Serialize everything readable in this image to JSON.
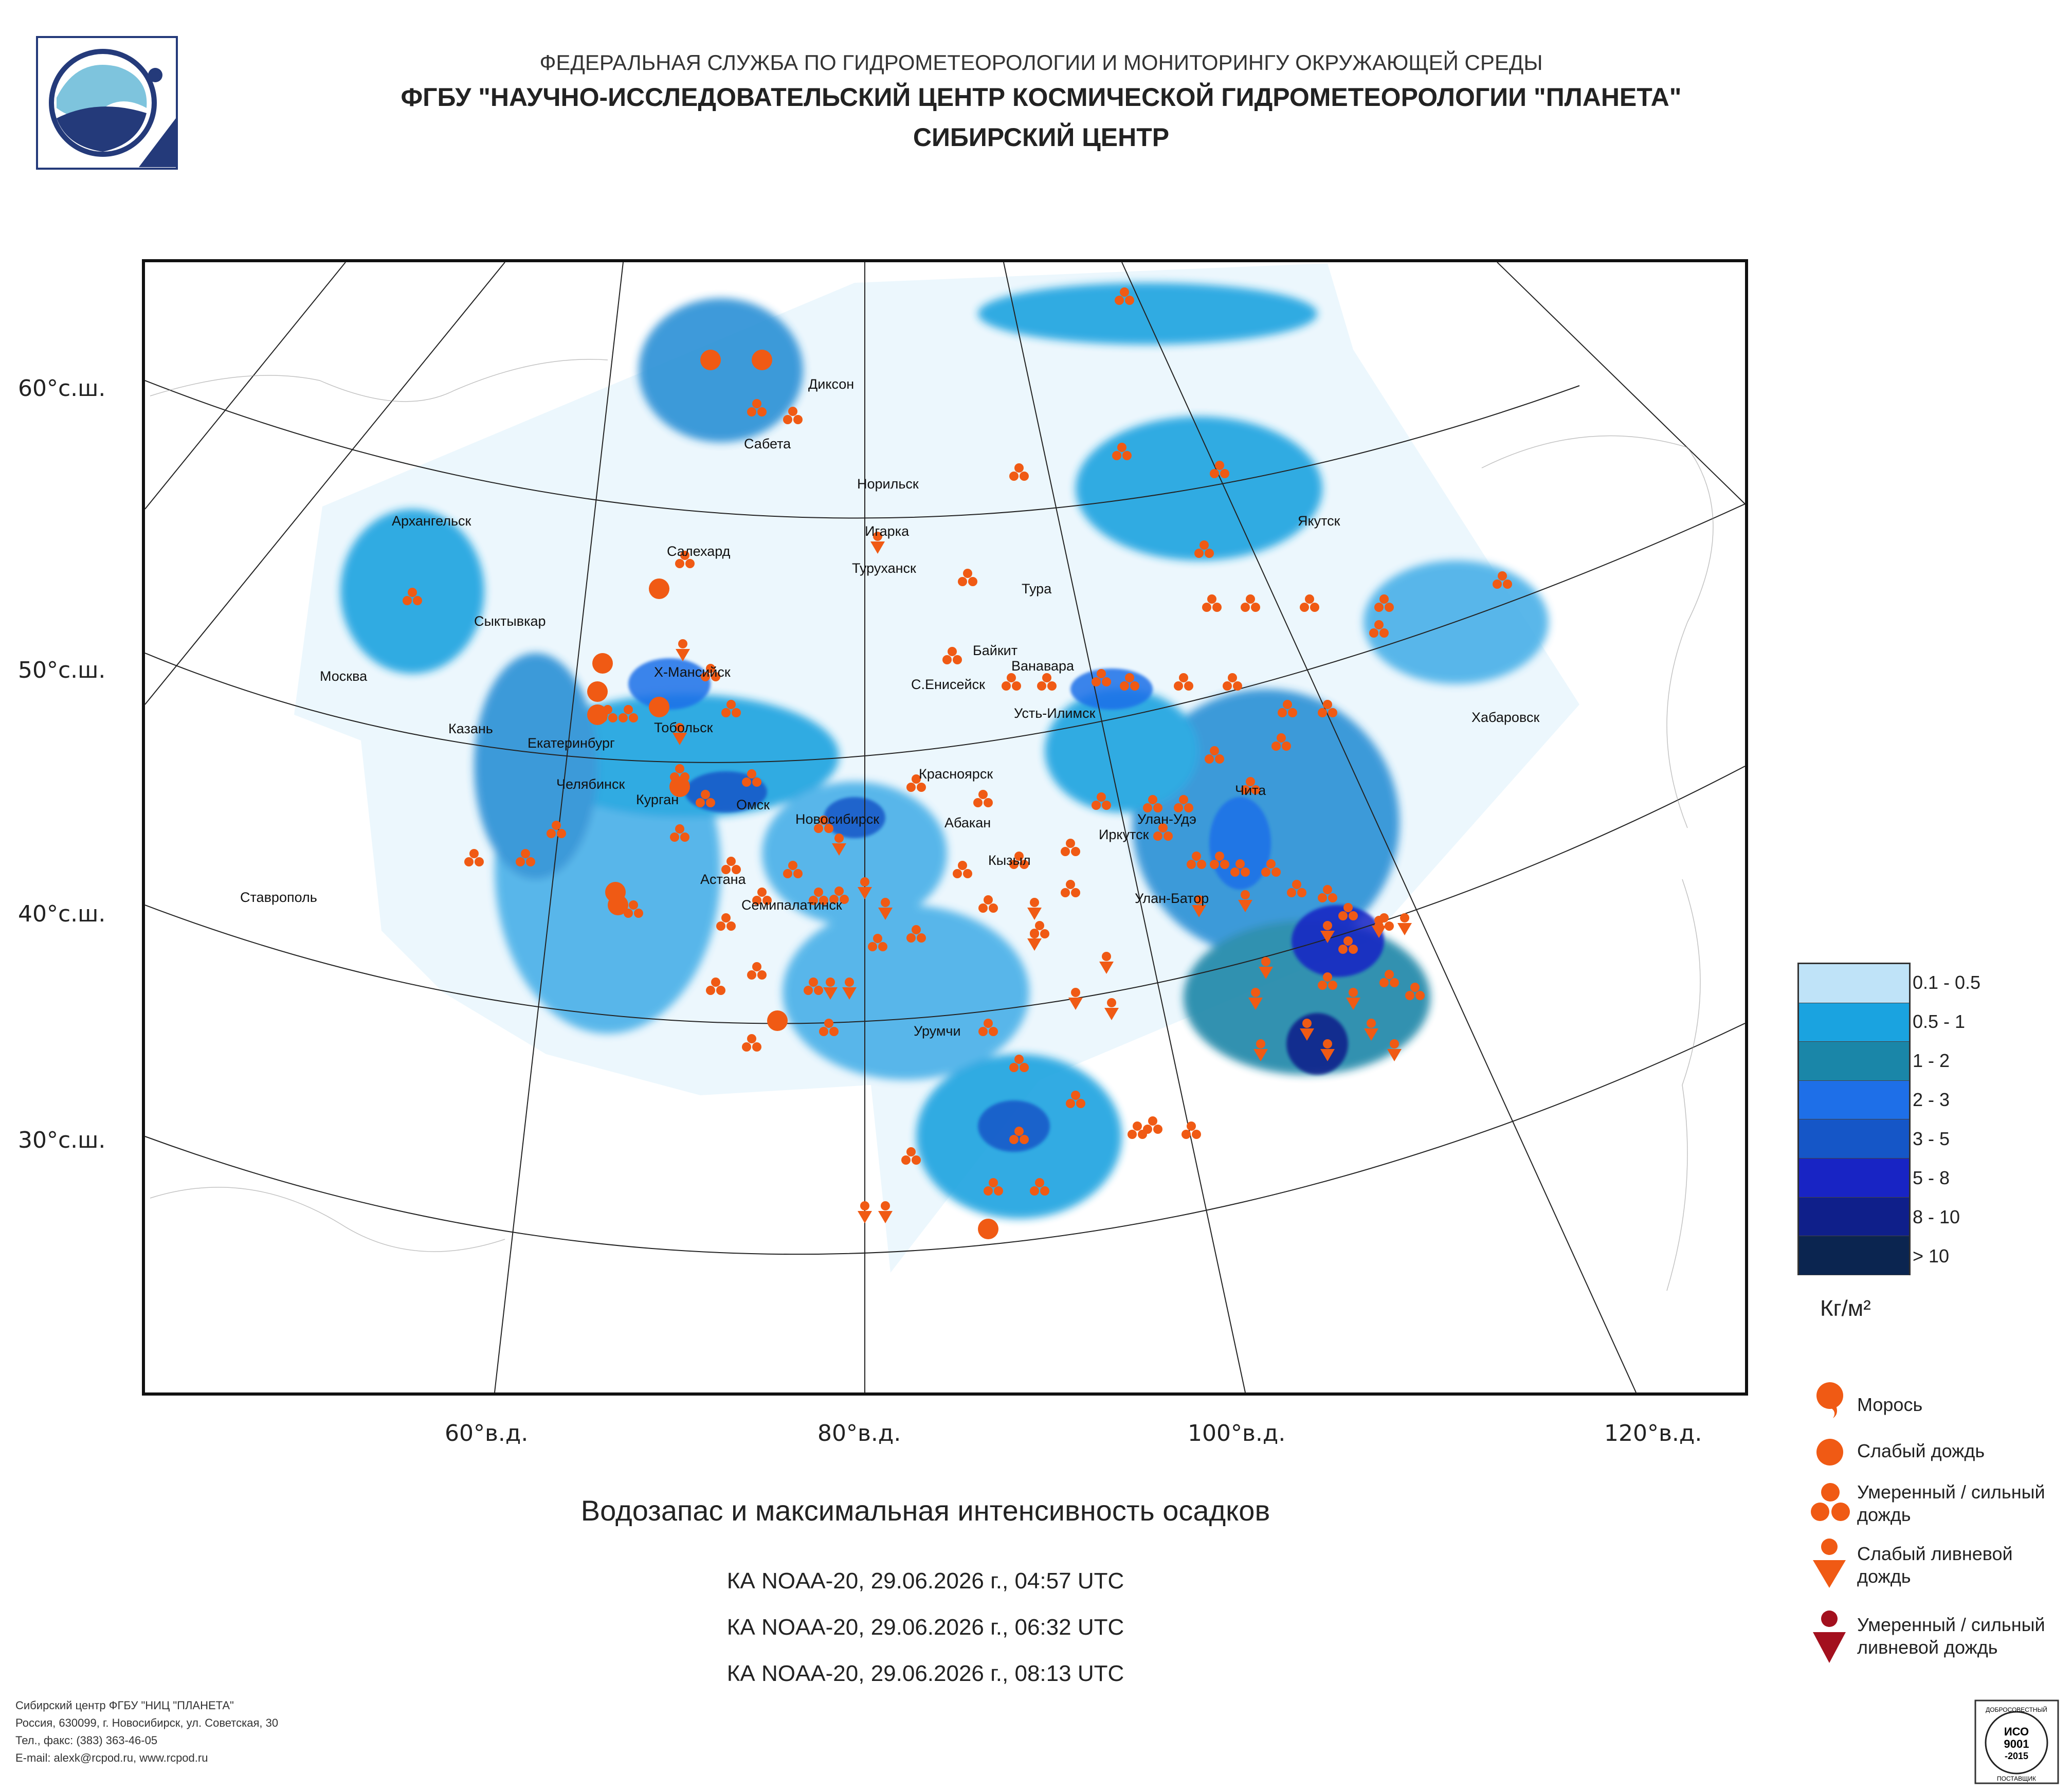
{
  "header": {
    "agency": "ФЕДЕРАЛЬНАЯ СЛУЖБА ПО ГИДРОМЕТЕОРОЛОГИИ И МОНИТОРИНГУ ОКРУЖАЮЩЕЙ СРЕДЫ",
    "organization": "ФГБУ \"НАУЧНО-ИССЛЕДОВАТЕЛЬСКИЙ ЦЕНТР КОСМИЧЕСКОЙ ГИДРОМЕТЕОРОЛОГИИ \"ПЛАНЕТА\"",
    "center": "СИБИРСКИЙ ЦЕНТР"
  },
  "map": {
    "lat_labels": [
      "60°с.ш.",
      "50°с.ш.",
      "40°с.ш.",
      "30°с.ш."
    ],
    "lon_labels": [
      "60°в.д.",
      "80°в.д.",
      "100°в.д.",
      "120°в.д."
    ],
    "cities": [
      "Диксон",
      "Сабета",
      "Норильск",
      "Игарка",
      "Туруханск",
      "Салехард",
      "Архангельск",
      "Сыктывкар",
      "Якутск",
      "Тура",
      "Байкит",
      "Ванавара",
      "Х-Мансийск",
      "С.Енисейск",
      "Москва",
      "Усть-Илимск",
      "Хабаровск",
      "Казань",
      "Екатеринбург",
      "Тобольск",
      "Челябинск",
      "Курган",
      "Красноярск",
      "Омск",
      "Чита",
      "Новосибирск",
      "Абакан",
      "Улан-Удэ",
      "Иркутск",
      "Кызыл",
      "Астана",
      "Ставрополь",
      "Улан-Батор",
      "Семипалатинск",
      "Урумчи"
    ]
  },
  "title": "Водозапас и максимальная интенсивность осадков",
  "passes": [
    "КА NOAA-20, 29.06.2026 г., 04:57 UTC",
    "КА NOAA-20, 29.06.2026 г., 06:32 UTC",
    "КА NOAA-20, 29.06.2026 г., 08:13 UTC"
  ],
  "legend": {
    "scale": [
      {
        "label": "0.1 - 0.5",
        "color": "#bfe3f8"
      },
      {
        "label": "0.5 - 1",
        "color": "#1aa3e0"
      },
      {
        "label": "1 - 2",
        "color": "#1a86a8"
      },
      {
        "label": "2 - 3",
        "color": "#1e6fe8"
      },
      {
        "label": "3 - 5",
        "color": "#1556c7"
      },
      {
        "label": "5 - 8",
        "color": "#1824c4"
      },
      {
        "label": "8 - 10",
        "color": "#0f1f8a"
      },
      {
        "label": "> 10",
        "color": "#0b2550"
      }
    ],
    "unit": "Кг/м²",
    "precip_types": [
      {
        "label": "Морось",
        "icon": "drizzle-icon"
      },
      {
        "label": "Слабый дождь",
        "icon": "light-rain-icon"
      },
      {
        "label": "Умеренный / сильный дождь",
        "icon": "moderate-rain-icon"
      },
      {
        "label": "Слабый ливневой дождь",
        "icon": "light-shower-icon"
      },
      {
        "label": "Умеренный / сильный ливневой дождь",
        "icon": "heavy-shower-icon"
      }
    ],
    "marker_color": "#f05a14",
    "heavy_color": "#a3101e"
  },
  "footer": {
    "lines": [
      "Сибирский центр ФГБУ \"НИЦ \"ПЛАНЕТА\"",
      "Россия, 630099, г. Новосибирск, ул. Советская, 30",
      "Тел., факс: (383) 363-46-05",
      "E-mail: alexk@rcpod.ru, www.rcpod.ru"
    ],
    "iso_text": [
      "ДОБРОСОВЕСТНЫЙ",
      "ИСО",
      "9001",
      "-2015",
      "ПОСТАВЩИК"
    ]
  }
}
